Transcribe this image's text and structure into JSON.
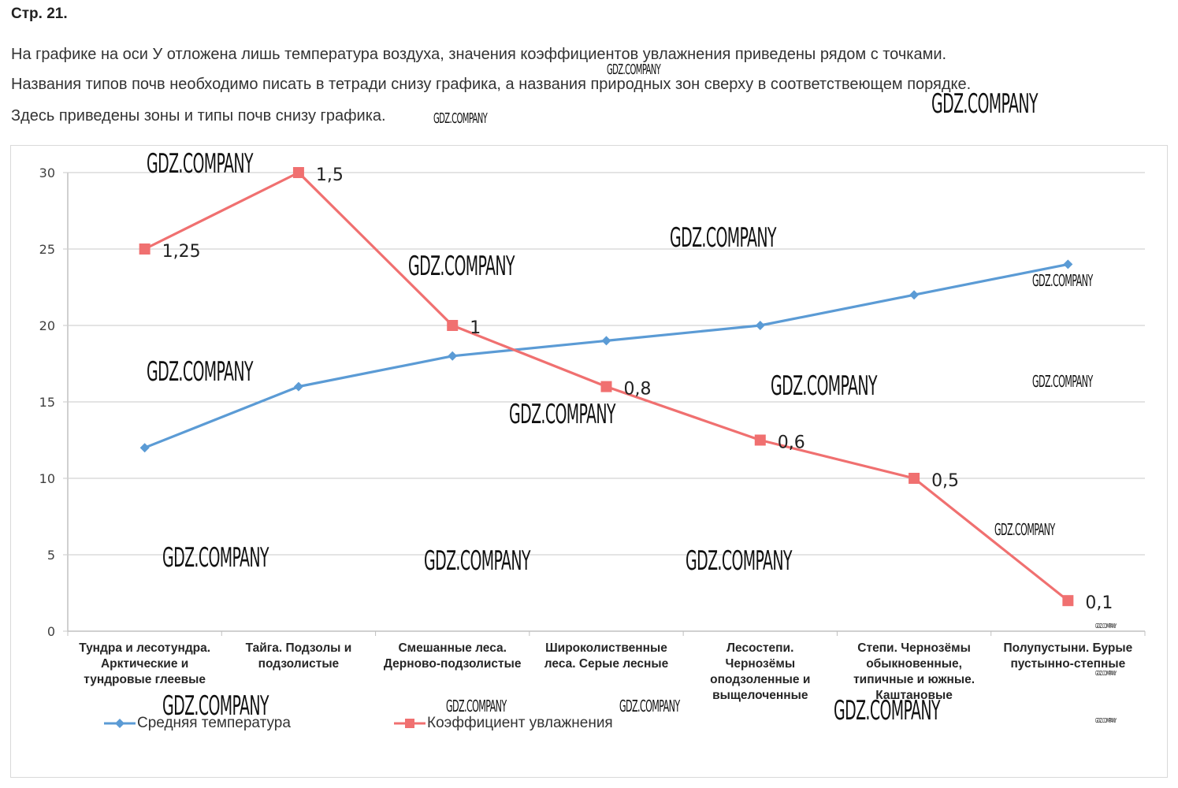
{
  "header": {
    "title": "Стр. 21.",
    "paragraphs": [
      "На графике на оси У отложена лишь температура воздуха, значения коэффициентов увлажнения приведены рядом с точками.",
      "Названия типов почв необходимо писать в тетради снизу графика, а названия природных зон сверху в соответствеющем порядке.",
      "Здесь приведены зоны и типы почв снизу графика."
    ]
  },
  "watermark": {
    "text": "GDZ.COMPANY"
  },
  "colors": {
    "temperature": "#5b9bd5",
    "moisture": "#f07070",
    "grid": "#c8c8c8",
    "axis_text": "#404040"
  },
  "chart_data": {
    "type": "line",
    "title": "",
    "xlabel": "",
    "ylabel": "",
    "ylim": [
      0,
      30
    ],
    "yticks": [
      0,
      5,
      10,
      15,
      20,
      25,
      30
    ],
    "grid": true,
    "legend_position": "bottom-left",
    "categories": [
      "Тундра и лесотундра. Арктические и тундровые глеевые",
      "Тайга. Подзолы и подзолистые",
      "Смешанные леса. Дерново-подзолистые",
      "Широколиственные леса. Серые лесные",
      "Лесостепи. Чернозёмы оподзоленные и выщелоченные",
      "Степи.  Чернозёмы обыкновенные, типичные и южные. Каштановые",
      "Полупустыни. Бурые пустынно-степные"
    ],
    "category_lines": [
      [
        "Тундра и лесотундра.",
        "Арктические и",
        "тундровые глеевые"
      ],
      [
        "Тайга. Подзолы и",
        "подзолистые"
      ],
      [
        "Смешанные леса.",
        "Дерново-подзолистые"
      ],
      [
        "Широколиственные",
        "леса. Серые лесные"
      ],
      [
        "Лесостепи.",
        "Чернозёмы",
        "оподзоленные и",
        "выщелоченные"
      ],
      [
        "Степи.  Чернозёмы",
        "обыкновенные,",
        "типичные и южные.",
        "Каштановые"
      ],
      [
        "Полупустыни. Бурые",
        "пустынно-степные"
      ]
    ],
    "series": [
      {
        "name": "Средняя температура",
        "marker": "diamond",
        "values": [
          12,
          16,
          18,
          19,
          20,
          22,
          24
        ]
      },
      {
        "name": "Коэффициент увлажнения",
        "marker": "square",
        "values": [
          25,
          30,
          20,
          16,
          12.5,
          10,
          2
        ],
        "data_labels": [
          "1,25",
          "1,5",
          "1",
          "0,8",
          "0,6",
          "0,5",
          "0,1"
        ]
      }
    ]
  }
}
